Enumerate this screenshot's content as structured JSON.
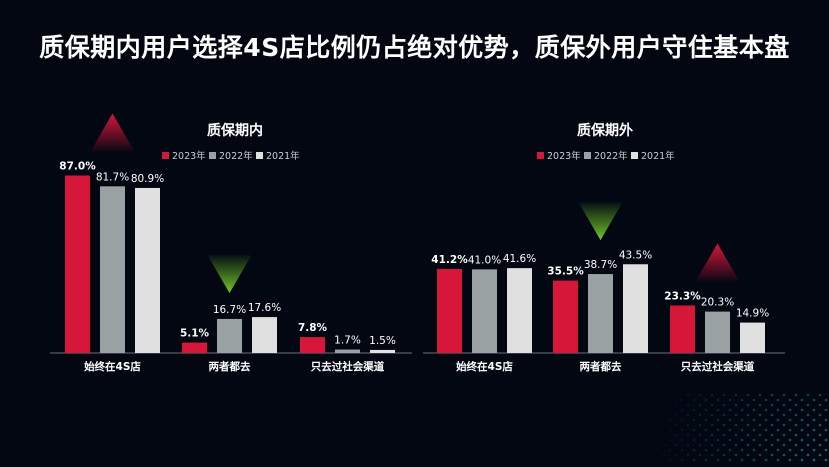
{
  "title": "质保期内用户选择4S店比例仍占绝对优势，质保外用户守住基本盘",
  "colors": {
    "2023年": "#d6173a",
    "2022年": "#9aa1a2",
    "2021年": "#e0e0e0",
    "up": "#c8163a",
    "down": "#6dbf27",
    "background": "#020712"
  },
  "chart_data": [
    {
      "type": "bar",
      "title": "质保期内",
      "legend": [
        "2023年",
        "2022年",
        "2021年"
      ],
      "legend_position": "top",
      "categories": [
        "始终在4S店",
        "两者都去",
        "只去过社会渠道"
      ],
      "series": [
        {
          "name": "2023年",
          "values": [
            87.0,
            5.1,
            7.8
          ],
          "labels": [
            "87.0%",
            "5.1%",
            "7.8%"
          ]
        },
        {
          "name": "2022年",
          "values": [
            81.7,
            16.7,
            1.7
          ],
          "labels": [
            "81.7%",
            "16.7%",
            "1.7%"
          ]
        },
        {
          "name": "2021年",
          "values": [
            80.9,
            17.6,
            1.5
          ],
          "labels": [
            "80.9%",
            "17.6%",
            "1.5%"
          ]
        }
      ],
      "ylim": [
        0,
        100
      ],
      "grid": false,
      "trend_markers": [
        {
          "category": "始终在4S店",
          "direction": "up"
        },
        {
          "category": "两者都去",
          "direction": "down"
        }
      ]
    },
    {
      "type": "bar",
      "title": "质保期外",
      "legend": [
        "2023年",
        "2022年",
        "2021年"
      ],
      "legend_position": "top",
      "categories": [
        "始终在4S店",
        "两者都去",
        "只去过社会渠道"
      ],
      "series": [
        {
          "name": "2023年",
          "values": [
            41.2,
            35.5,
            23.3
          ],
          "labels": [
            "41.2%",
            "35.5%",
            "23.3%"
          ]
        },
        {
          "name": "2022年",
          "values": [
            41.0,
            38.7,
            20.3
          ],
          "labels": [
            "41.0%",
            "38.7%",
            "20.3%"
          ]
        },
        {
          "name": "2021年",
          "values": [
            41.6,
            43.5,
            14.9
          ],
          "labels": [
            "41.6%",
            "43.5%",
            "14.9%"
          ]
        }
      ],
      "ylim": [
        0,
        100
      ],
      "grid": false,
      "trend_markers": [
        {
          "category": "两者都去",
          "direction": "down"
        },
        {
          "category": "只去过社会渠道",
          "direction": "up"
        }
      ]
    }
  ]
}
